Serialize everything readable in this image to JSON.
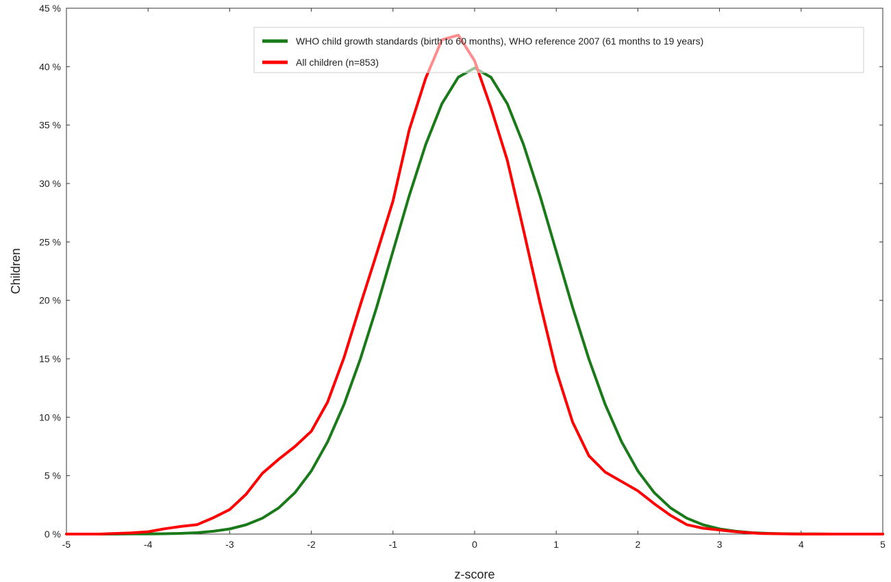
{
  "chart_data": {
    "type": "line",
    "title": "",
    "xlabel": "z-score",
    "ylabel": "Children",
    "xlim": [
      -5,
      5
    ],
    "ylim": [
      0,
      45
    ],
    "x_ticks": [
      "-5",
      "-4",
      "-3",
      "-2",
      "-1",
      "0",
      "1",
      "2",
      "3",
      "4",
      "5"
    ],
    "y_ticks": [
      "0 %",
      "5 %",
      "10 %",
      "15 %",
      "20 %",
      "25 %",
      "30 %",
      "35 %",
      "40 %",
      "45 %"
    ],
    "grid": false,
    "legend_position": "top-right",
    "series": [
      {
        "name": "WHO child growth standards (birth to 60 months), WHO reference 2007 (61 months to 19 years)",
        "color": "#1a7a1a",
        "x": [
          -5,
          -4.8,
          -4.6,
          -4.4,
          -4.2,
          -4,
          -3.8,
          -3.6,
          -3.4,
          -3.2,
          -3,
          -2.8,
          -2.6,
          -2.4,
          -2.2,
          -2,
          -1.8,
          -1.6,
          -1.4,
          -1.2,
          -1,
          -0.8,
          -0.6,
          -0.4,
          -0.2,
          0,
          0.2,
          0.4,
          0.6,
          0.8,
          1,
          1.2,
          1.4,
          1.6,
          1.8,
          2,
          2.2,
          2.4,
          2.6,
          2.8,
          3,
          3.2,
          3.4,
          3.6,
          3.8,
          4,
          4.2,
          4.4,
          4.6,
          4.8,
          5
        ],
        "values": [
          0,
          0,
          0,
          0,
          0.01,
          0.01,
          0.03,
          0.06,
          0.12,
          0.24,
          0.44,
          0.79,
          1.36,
          2.24,
          3.55,
          5.4,
          7.9,
          11.09,
          14.97,
          19.42,
          24.2,
          28.97,
          33.32,
          36.83,
          39.1,
          39.89,
          39.1,
          36.83,
          33.32,
          28.97,
          24.2,
          19.42,
          14.97,
          11.09,
          7.9,
          5.4,
          3.55,
          2.24,
          1.36,
          0.79,
          0.44,
          0.24,
          0.12,
          0.06,
          0.03,
          0.01,
          0.01,
          0,
          0,
          0,
          0
        ]
      },
      {
        "name": "All children (n=853)",
        "color": "#ff0000",
        "x": [
          -5,
          -4.6,
          -4.2,
          -4,
          -3.8,
          -3.6,
          -3.4,
          -3.2,
          -3,
          -2.8,
          -2.6,
          -2.4,
          -2.2,
          -2,
          -1.8,
          -1.6,
          -1.4,
          -1.2,
          -1,
          -0.8,
          -0.6,
          -0.4,
          -0.2,
          0,
          0.2,
          0.4,
          0.6,
          0.8,
          1,
          1.2,
          1.4,
          1.6,
          1.8,
          2,
          2.2,
          2.4,
          2.6,
          2.8,
          3,
          3.2,
          3.5,
          4,
          5
        ],
        "values": [
          0,
          0,
          0.1,
          0.2,
          0.45,
          0.65,
          0.8,
          1.4,
          2.1,
          3.4,
          5.2,
          6.4,
          7.5,
          8.8,
          11.3,
          15.1,
          19.6,
          24,
          28.5,
          34.6,
          39,
          42.3,
          42.7,
          40.5,
          36.5,
          32,
          26,
          19.8,
          14,
          9.6,
          6.7,
          5.3,
          4.5,
          3.7,
          2.6,
          1.6,
          0.8,
          0.5,
          0.35,
          0.2,
          0.05,
          0,
          0
        ]
      }
    ]
  }
}
